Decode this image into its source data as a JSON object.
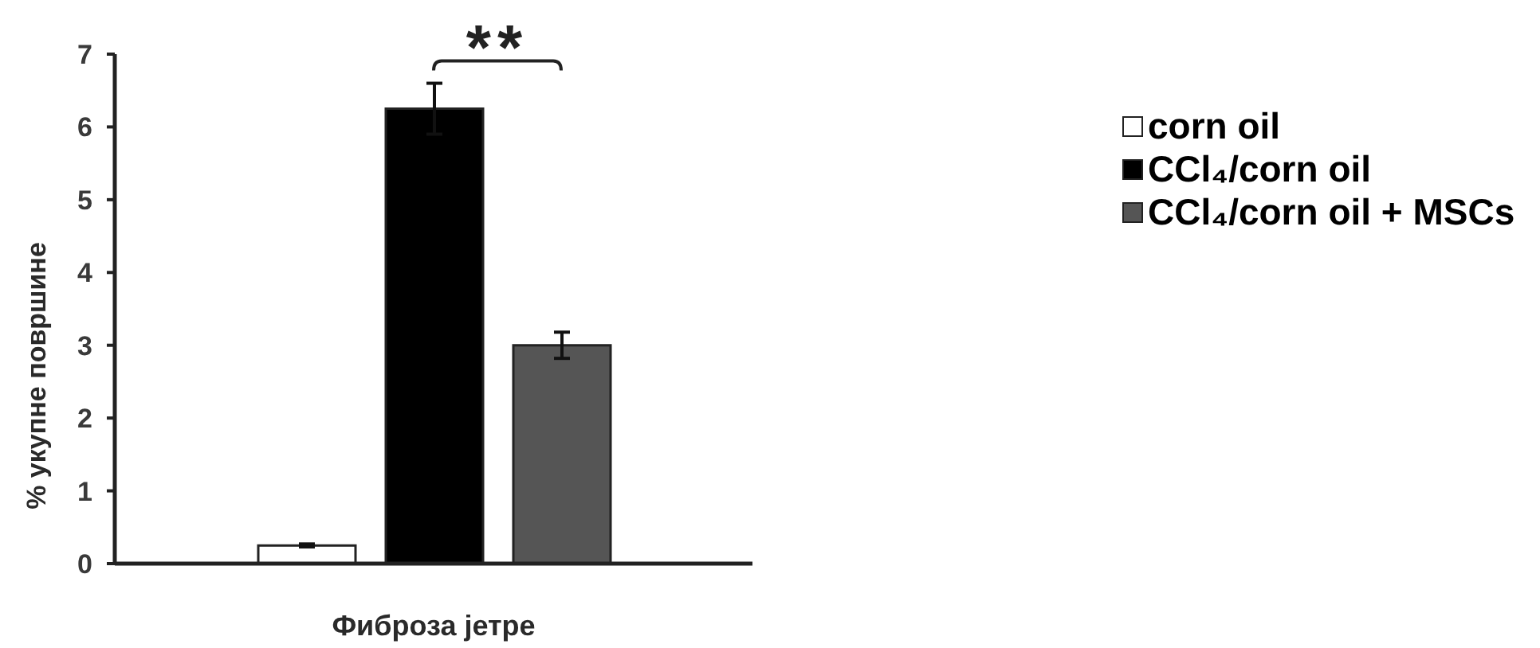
{
  "chart_data": {
    "type": "bar",
    "categories": [
      "Фиброза јетре"
    ],
    "ylabel": "% укупне површине",
    "ylim": [
      0,
      7
    ],
    "yticks": [
      0,
      1,
      2,
      3,
      4,
      5,
      6,
      7
    ],
    "series": [
      {
        "name": "corn oil",
        "color": "#ffffff",
        "values": [
          0.25
        ],
        "errors": [
          0.02
        ]
      },
      {
        "name": "CCl₄/corn oil",
        "color": "#000000",
        "values": [
          6.25
        ],
        "errors": [
          0.35
        ]
      },
      {
        "name": "CCl₄/corn oil + MSCs",
        "color": "#555555",
        "values": [
          3.0
        ],
        "errors": [
          0.18
        ]
      }
    ],
    "legend": "right",
    "annotations": [
      "**"
    ]
  }
}
